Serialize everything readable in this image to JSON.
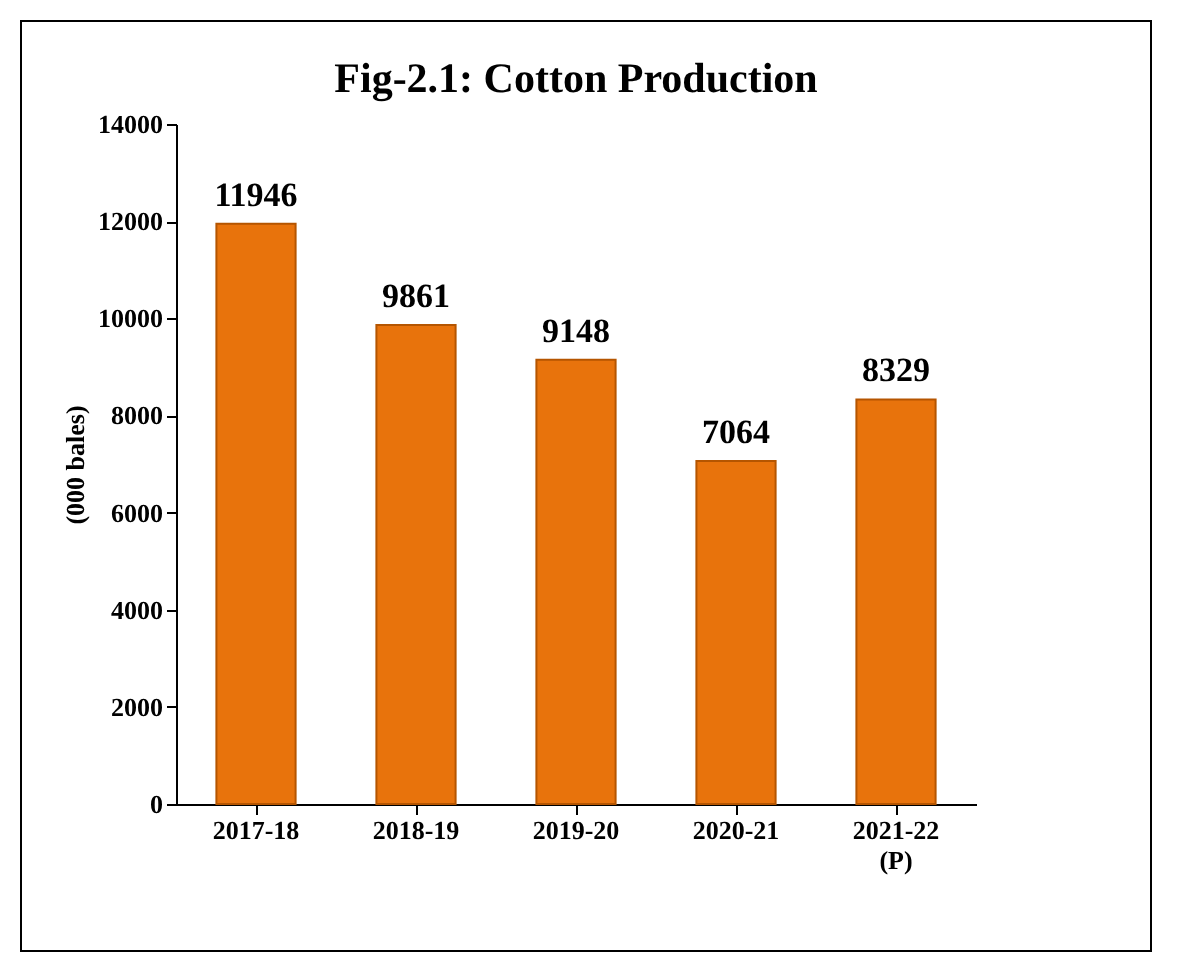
{
  "chart_data": {
    "type": "bar",
    "title": "Fig-2.1: Cotton Production",
    "ylabel": "(000 bales)",
    "categories": [
      "2017-18",
      "2018-19",
      "2019-20",
      "2020-21",
      "2021-22 (P)"
    ],
    "values": [
      11946,
      9861,
      9148,
      7064,
      8329
    ],
    "color": "#e8730c",
    "ylim": [
      0,
      14000
    ],
    "yticks": [
      0,
      2000,
      4000,
      6000,
      8000,
      10000,
      12000,
      14000
    ],
    "data_labels": true
  }
}
